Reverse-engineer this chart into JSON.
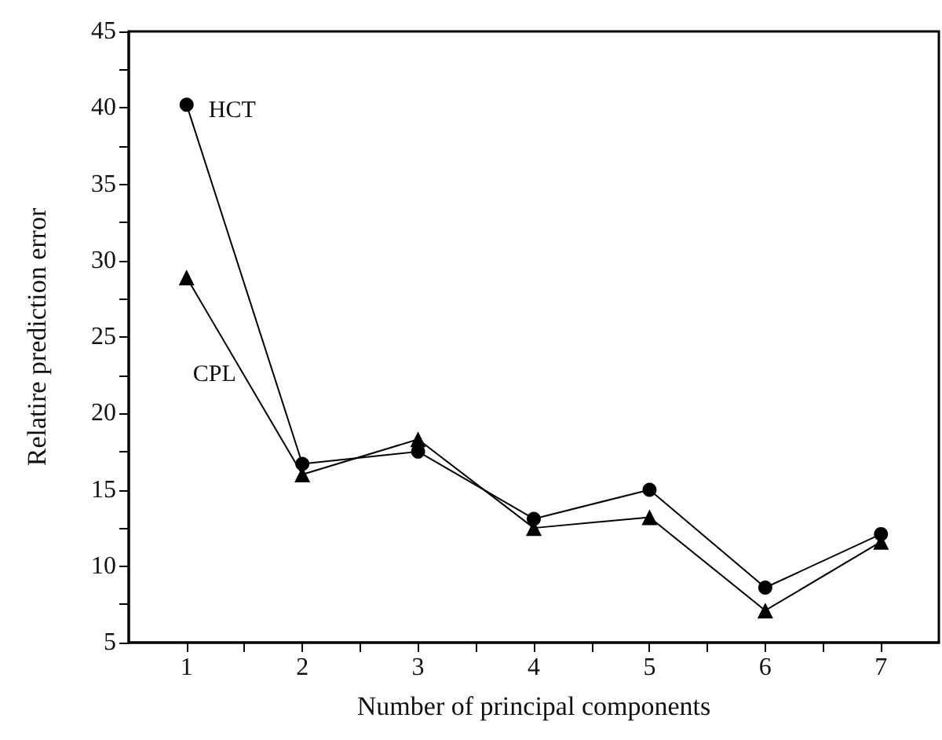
{
  "chart_data": {
    "type": "line",
    "xlabel": "Number of principal components",
    "ylabel": "Relatire prediction error",
    "x": [
      1,
      2,
      3,
      4,
      5,
      6,
      7
    ],
    "series": [
      {
        "name": "HCT",
        "color": "#000000",
        "marker": "circle",
        "values": [
          40.2,
          16.7,
          17.5,
          13.1,
          15.0,
          8.6,
          12.1
        ]
      },
      {
        "name": "CPL",
        "color": "#000000",
        "marker": "triangle",
        "values": [
          28.9,
          16.0,
          18.3,
          12.5,
          13.2,
          7.1,
          11.6
        ]
      }
    ],
    "xlim": [
      0.5,
      7.5
    ],
    "xticks": [
      1,
      {
        "value": 1.5,
        "label": null
      },
      2,
      {
        "value": 2.5,
        "label": null
      },
      3,
      {
        "value": 3.5,
        "label": null
      },
      4,
      {
        "value": 4.5,
        "label": null
      },
      5,
      {
        "value": 5.5,
        "label": null
      },
      6,
      {
        "value": 6.5,
        "label": null
      },
      7
    ],
    "ylim": [
      5,
      45
    ],
    "yticks": [
      5,
      {
        "value": 7.5,
        "label": null
      },
      10,
      {
        "value": 12.5,
        "label": null
      },
      15,
      {
        "value": 17.5,
        "label": null
      },
      20,
      {
        "value": 22.5,
        "label": null
      },
      25,
      {
        "value": 27.5,
        "label": null
      },
      30,
      {
        "value": 32.5,
        "label": null
      },
      35,
      {
        "value": 37.5,
        "label": null
      },
      40,
      {
        "value": 42.5,
        "label": null
      },
      45
    ],
    "grid": false,
    "legend": false,
    "line_style": "solid"
  }
}
